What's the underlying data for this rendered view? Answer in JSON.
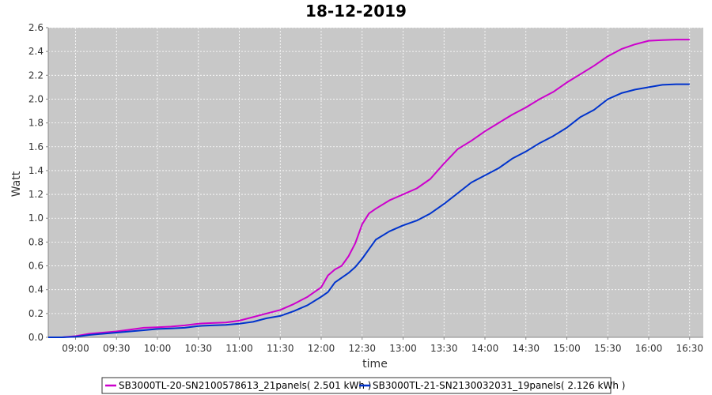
{
  "chart_data": {
    "type": "line",
    "title": "18-12-2019",
    "xlabel": "time",
    "ylabel": "Watt",
    "xlim": [
      "08:40",
      "16:40"
    ],
    "ylim": [
      0,
      2.6
    ],
    "x_ticks": [
      "09:00",
      "09:30",
      "10:00",
      "10:30",
      "11:00",
      "11:30",
      "12:00",
      "12:30",
      "13:00",
      "13:30",
      "14:00",
      "14:30",
      "15:00",
      "15:30",
      "16:00",
      "16:30"
    ],
    "y_ticks": [
      "0.0",
      "0.2",
      "0.4",
      "0.6",
      "0.8",
      "1.0",
      "1.2",
      "1.4",
      "1.6",
      "1.8",
      "2.0",
      "2.2",
      "2.4",
      "2.6"
    ],
    "grid": true,
    "legend_position": "bottom",
    "series": [
      {
        "name": "SB3000TL-20-SN2100578613_21panels( 2.501 kWh )",
        "color": "#cc00cc",
        "points": [
          [
            "08:40",
            0.0
          ],
          [
            "08:50",
            0.0
          ],
          [
            "09:00",
            0.01
          ],
          [
            "09:10",
            0.03
          ],
          [
            "09:20",
            0.04
          ],
          [
            "09:30",
            0.05
          ],
          [
            "09:40",
            0.065
          ],
          [
            "09:50",
            0.08
          ],
          [
            "10:00",
            0.085
          ],
          [
            "10:10",
            0.09
          ],
          [
            "10:20",
            0.1
          ],
          [
            "10:30",
            0.115
          ],
          [
            "10:40",
            0.12
          ],
          [
            "10:50",
            0.125
          ],
          [
            "11:00",
            0.14
          ],
          [
            "11:10",
            0.17
          ],
          [
            "11:20",
            0.2
          ],
          [
            "11:30",
            0.23
          ],
          [
            "11:40",
            0.28
          ],
          [
            "11:50",
            0.34
          ],
          [
            "12:00",
            0.42
          ],
          [
            "12:05",
            0.52
          ],
          [
            "12:10",
            0.57
          ],
          [
            "12:15",
            0.6
          ],
          [
            "12:20",
            0.68
          ],
          [
            "12:25",
            0.79
          ],
          [
            "12:30",
            0.95
          ],
          [
            "12:35",
            1.04
          ],
          [
            "12:40",
            1.08
          ],
          [
            "12:50",
            1.15
          ],
          [
            "13:00",
            1.2
          ],
          [
            "13:10",
            1.25
          ],
          [
            "13:20",
            1.33
          ],
          [
            "13:30",
            1.46
          ],
          [
            "13:40",
            1.58
          ],
          [
            "13:50",
            1.65
          ],
          [
            "14:00",
            1.73
          ],
          [
            "14:10",
            1.8
          ],
          [
            "14:20",
            1.87
          ],
          [
            "14:30",
            1.93
          ],
          [
            "14:40",
            2.0
          ],
          [
            "14:50",
            2.06
          ],
          [
            "15:00",
            2.14
          ],
          [
            "15:10",
            2.21
          ],
          [
            "15:20",
            2.28
          ],
          [
            "15:30",
            2.36
          ],
          [
            "15:40",
            2.42
          ],
          [
            "15:50",
            2.46
          ],
          [
            "16:00",
            2.49
          ],
          [
            "16:10",
            2.495
          ],
          [
            "16:20",
            2.5
          ],
          [
            "16:30",
            2.5
          ]
        ]
      },
      {
        "name": "SB3000TL-21-SN2130032031_19panels( 2.126 kWh )",
        "color": "#0033cc",
        "points": [
          [
            "08:40",
            0.0
          ],
          [
            "08:50",
            0.0
          ],
          [
            "09:00",
            0.005
          ],
          [
            "09:10",
            0.02
          ],
          [
            "09:20",
            0.03
          ],
          [
            "09:30",
            0.04
          ],
          [
            "09:40",
            0.05
          ],
          [
            "09:50",
            0.06
          ],
          [
            "10:00",
            0.07
          ],
          [
            "10:10",
            0.075
          ],
          [
            "10:20",
            0.08
          ],
          [
            "10:30",
            0.095
          ],
          [
            "10:40",
            0.1
          ],
          [
            "10:50",
            0.105
          ],
          [
            "11:00",
            0.115
          ],
          [
            "11:10",
            0.13
          ],
          [
            "11:20",
            0.16
          ],
          [
            "11:30",
            0.18
          ],
          [
            "11:40",
            0.22
          ],
          [
            "11:50",
            0.27
          ],
          [
            "12:00",
            0.34
          ],
          [
            "12:05",
            0.38
          ],
          [
            "12:10",
            0.46
          ],
          [
            "12:15",
            0.5
          ],
          [
            "12:20",
            0.54
          ],
          [
            "12:25",
            0.59
          ],
          [
            "12:30",
            0.66
          ],
          [
            "12:35",
            0.74
          ],
          [
            "12:40",
            0.82
          ],
          [
            "12:50",
            0.89
          ],
          [
            "13:00",
            0.94
          ],
          [
            "13:10",
            0.98
          ],
          [
            "13:20",
            1.04
          ],
          [
            "13:30",
            1.12
          ],
          [
            "13:40",
            1.21
          ],
          [
            "13:50",
            1.3
          ],
          [
            "14:00",
            1.36
          ],
          [
            "14:10",
            1.42
          ],
          [
            "14:20",
            1.5
          ],
          [
            "14:30",
            1.56
          ],
          [
            "14:40",
            1.63
          ],
          [
            "14:50",
            1.69
          ],
          [
            "15:00",
            1.76
          ],
          [
            "15:10",
            1.85
          ],
          [
            "15:20",
            1.91
          ],
          [
            "15:30",
            2.0
          ],
          [
            "15:40",
            2.05
          ],
          [
            "15:50",
            2.08
          ],
          [
            "16:00",
            2.1
          ],
          [
            "16:10",
            2.12
          ],
          [
            "16:20",
            2.125
          ],
          [
            "16:30",
            2.125
          ]
        ]
      }
    ]
  }
}
